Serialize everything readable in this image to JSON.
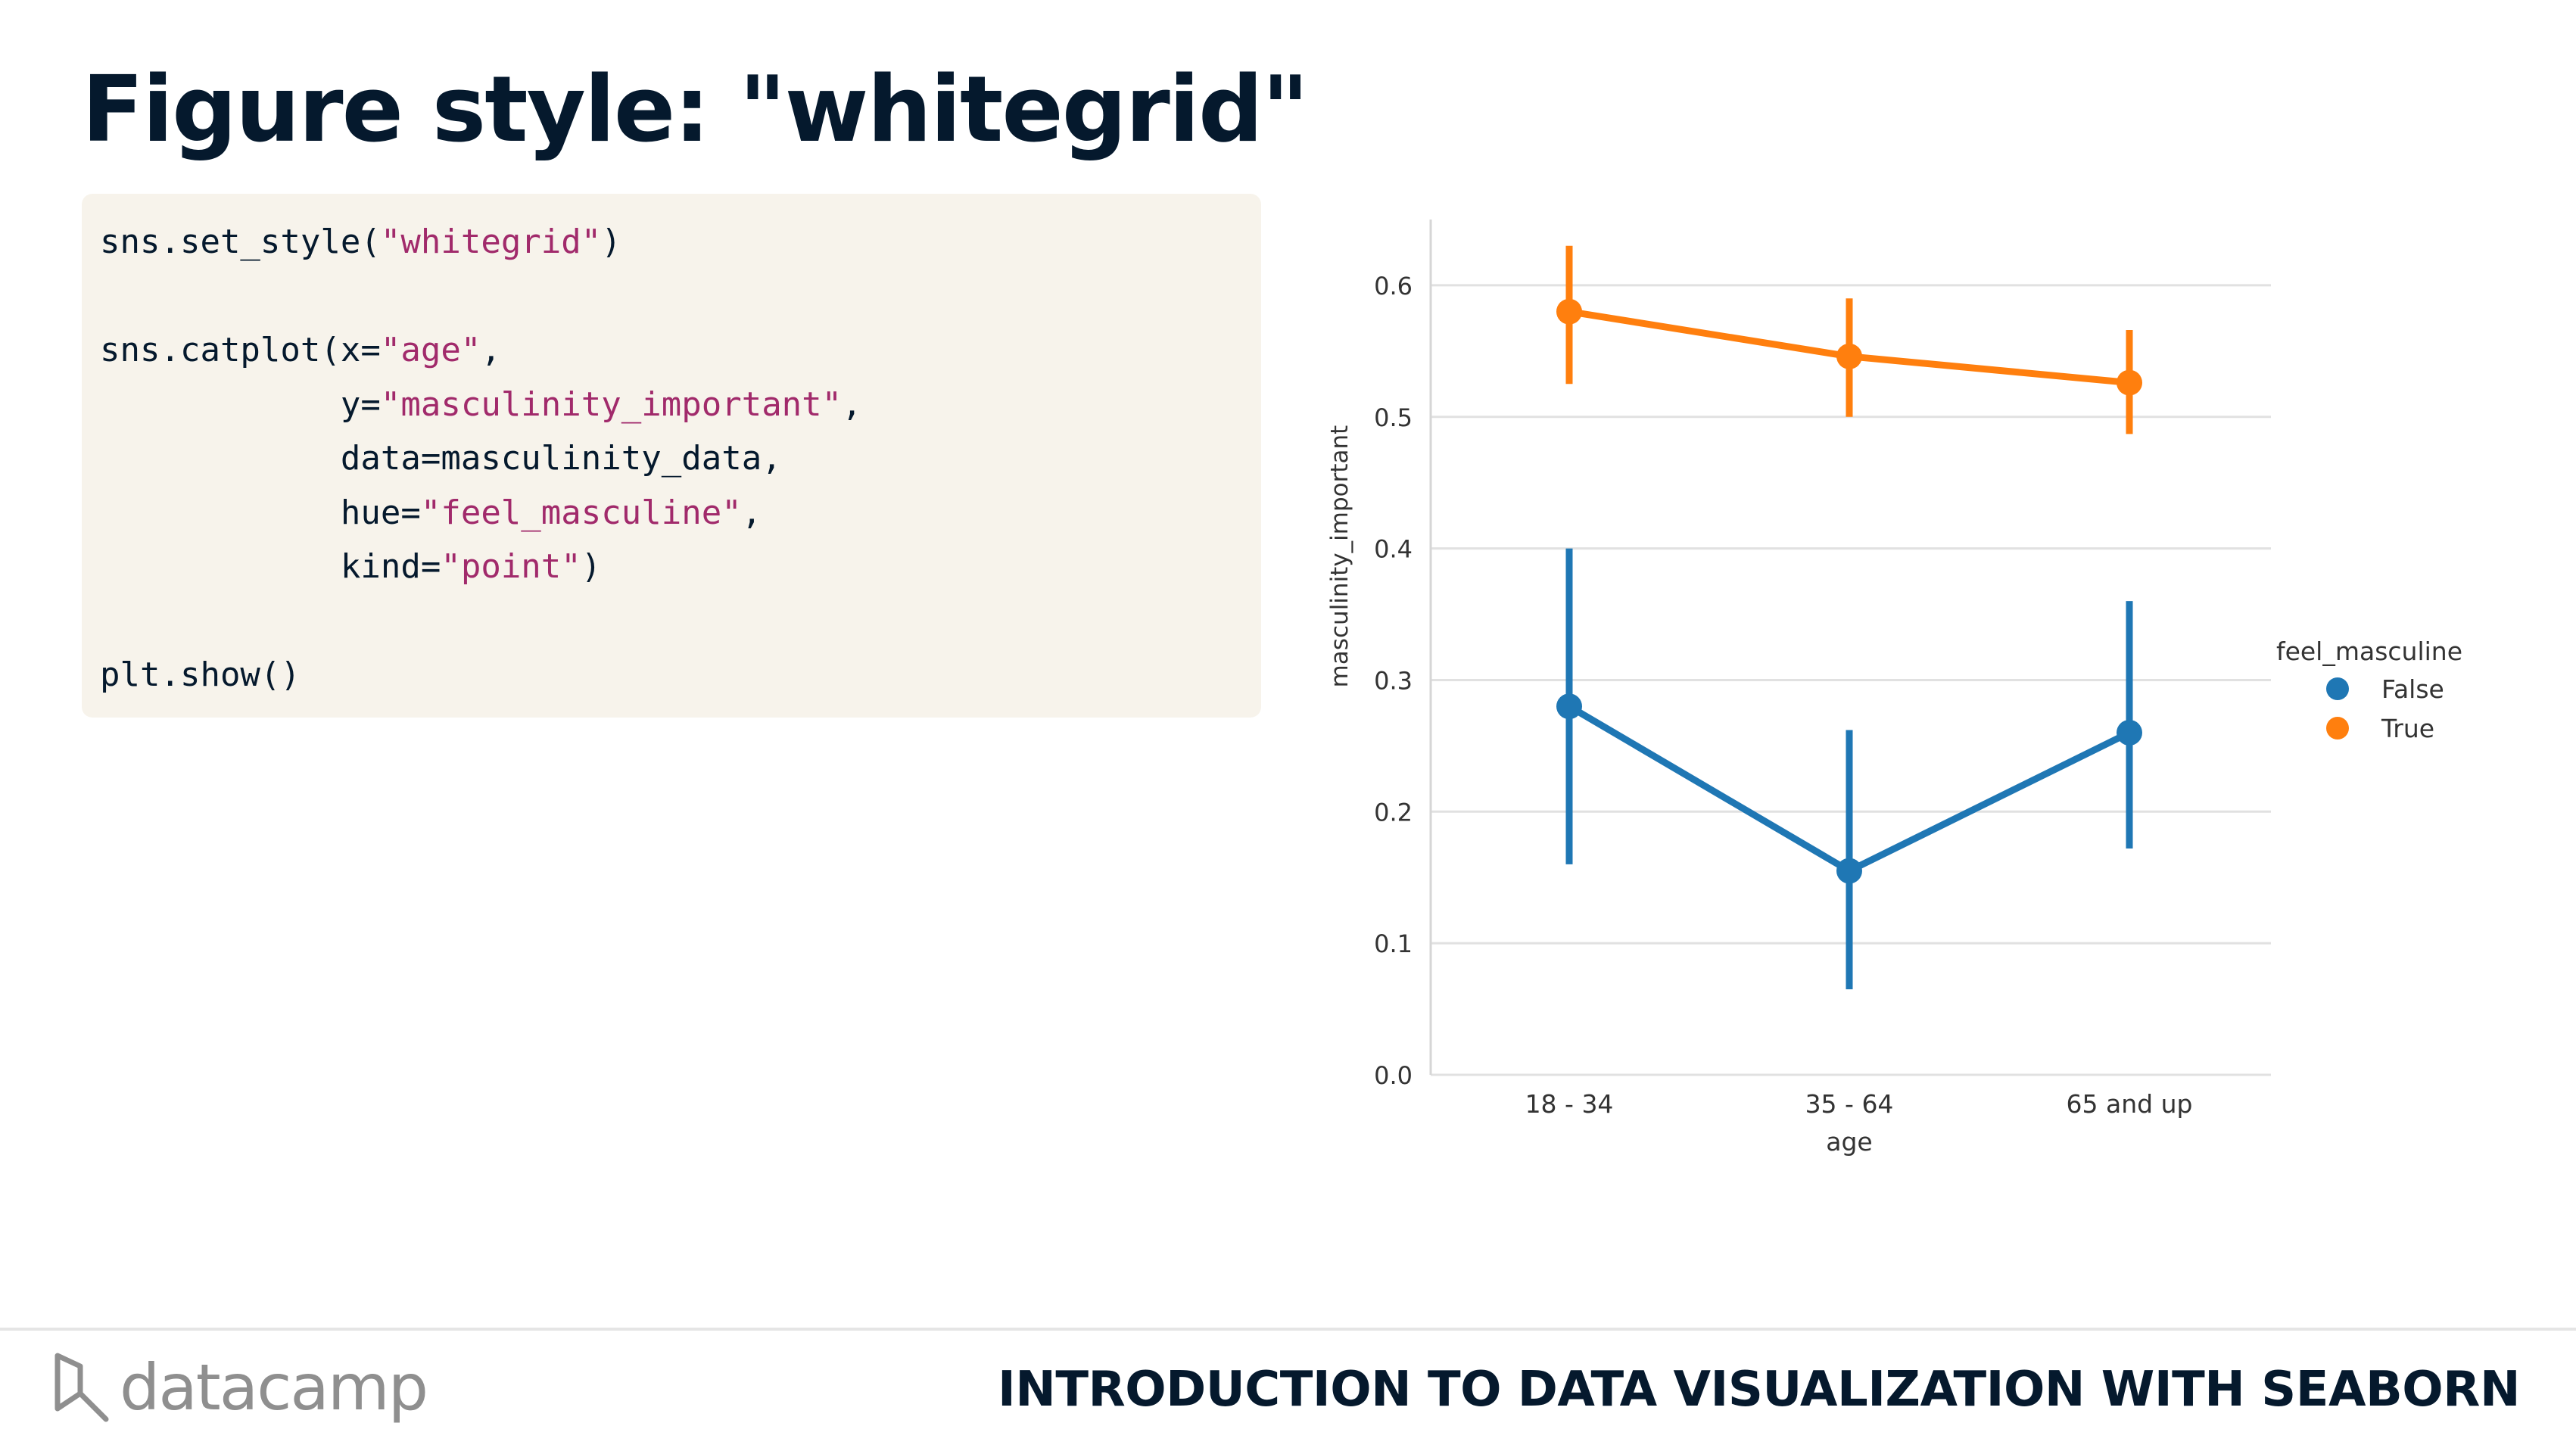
{
  "slide": {
    "title": "Figure style: \"whitegrid\"",
    "course_title": "INTRODUCTION TO DATA VISUALIZATION WITH SEABORN",
    "logo_text": "datacamp"
  },
  "code": {
    "lines": [
      [
        {
          "t": "sns.set_style("
        },
        {
          "t": "\"whitegrid\"",
          "s": 1
        },
        {
          "t": ")"
        }
      ],
      [],
      [
        {
          "t": "sns.catplot(x="
        },
        {
          "t": "\"age\"",
          "s": 1
        },
        {
          "t": ","
        }
      ],
      [
        {
          "t": "            y="
        },
        {
          "t": "\"masculinity_important\"",
          "s": 1
        },
        {
          "t": ","
        }
      ],
      [
        {
          "t": "            data=masculinity_data,"
        }
      ],
      [
        {
          "t": "            hue="
        },
        {
          "t": "\"feel_masculine\"",
          "s": 1
        },
        {
          "t": ","
        }
      ],
      [
        {
          "t": "            kind="
        },
        {
          "t": "\"point\"",
          "s": 1
        },
        {
          "t": ")"
        }
      ],
      [],
      [
        {
          "t": "plt.show()"
        }
      ]
    ]
  },
  "colors": {
    "title": "#05192d",
    "code_bg": "#f7f3eb",
    "code_string": "#a12a6b",
    "series_false": "#1f77b4",
    "series_true": "#ff7f0e",
    "grid": "#e1e1e1",
    "logo": "#8f8f8f"
  },
  "chart_data": {
    "type": "line",
    "style": "whitegrid",
    "grid": true,
    "legend_position": "right",
    "xlabel": "age",
    "ylabel": "masculinity_important",
    "categories": [
      "18 - 34",
      "35 - 64",
      "65 and up"
    ],
    "ylim": [
      0.0,
      0.65
    ],
    "yticks": [
      0.0,
      0.1,
      0.2,
      0.3,
      0.4,
      0.5,
      0.6
    ],
    "ytick_labels": [
      "0.0",
      "0.1",
      "0.2",
      "0.3",
      "0.4",
      "0.5",
      "0.6"
    ],
    "legend_title": "feel_masculine",
    "series": [
      {
        "name": "False",
        "color": "#1f77b4",
        "values": [
          0.28,
          0.155,
          0.26
        ],
        "ci_low": [
          0.16,
          0.065,
          0.172
        ],
        "ci_high": [
          0.4,
          0.262,
          0.36
        ]
      },
      {
        "name": "True",
        "color": "#ff7f0e",
        "values": [
          0.58,
          0.546,
          0.526
        ],
        "ci_low": [
          0.525,
          0.5,
          0.487
        ],
        "ci_high": [
          0.63,
          0.59,
          0.566
        ]
      }
    ]
  }
}
